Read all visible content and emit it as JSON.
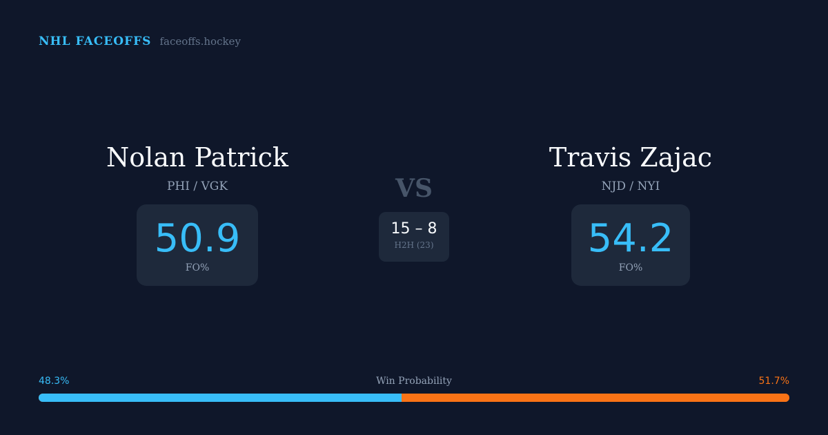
{
  "brand": {
    "name": "NHL FACEOFFS",
    "url": "faceoffs.hockey"
  },
  "players": [
    {
      "name": "Nolan Patrick",
      "teams": "PHI / VGK",
      "fo_pct": "50.9",
      "fo_label": "FO%"
    },
    {
      "name": "Travis Zajac",
      "teams": "NJD / NYI",
      "fo_pct": "54.2",
      "fo_label": "FO%"
    }
  ],
  "vs": "VS",
  "h2h": {
    "score": "15 – 8",
    "label": "H2H (23)"
  },
  "win_probability": {
    "title": "Win Probability",
    "left": "48.3%",
    "right": "51.7%",
    "left_value": 48.3,
    "colors": {
      "left": "#38bdf8",
      "right": "#f97316"
    }
  }
}
